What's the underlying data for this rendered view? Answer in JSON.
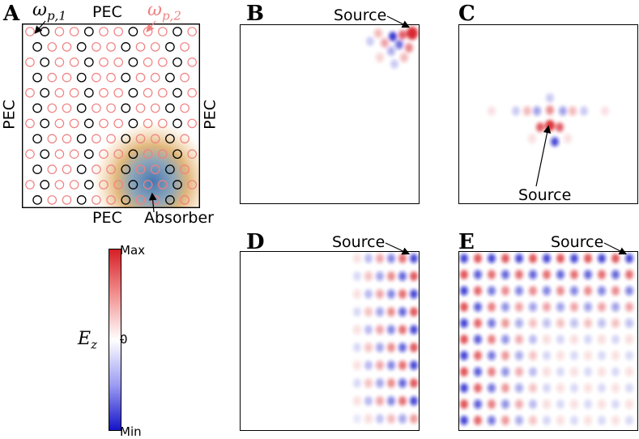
{
  "panels": {
    "a": {
      "letter": "A"
    },
    "b": {
      "letter": "B"
    },
    "c": {
      "letter": "C"
    },
    "d": {
      "letter": "D"
    },
    "e": {
      "letter": "E"
    }
  },
  "boundary_labels": {
    "top": "PEC",
    "left": "PEC",
    "right": "PEC",
    "bottom": "PEC"
  },
  "omega_1": {
    "base": "ω",
    "sub": "p,1"
  },
  "omega_2": {
    "base": "ω",
    "sub": "p,2"
  },
  "absorber_label": "Absorber",
  "source_label": "Source",
  "colors": {
    "lattice_1": "#000000",
    "lattice_2": "#f08080",
    "positive": "#d61f26",
    "negative": "#1414c8",
    "absorber_outer": "#e8a24a",
    "absorber_inner": "#3a6fb0"
  },
  "colorbar": {
    "title_base": "E",
    "title_sub": "z",
    "max_label": "Max",
    "zero_label": "0",
    "min_label": "Min"
  }
}
